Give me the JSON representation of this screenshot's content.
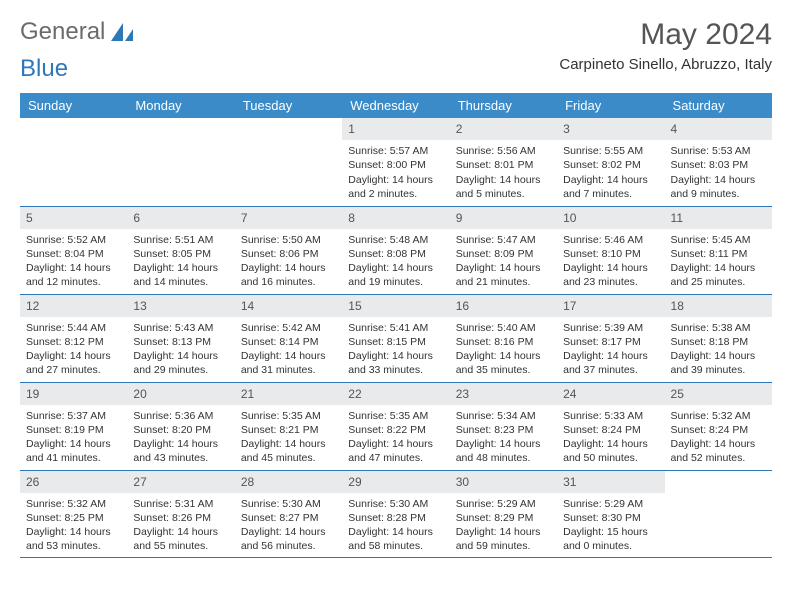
{
  "logo": {
    "word1": "General",
    "word2": "Blue",
    "icon_color": "#2f78b8"
  },
  "title": "May 2024",
  "location": "Carpineto Sinello, Abruzzo, Italy",
  "colors": {
    "header_bg": "#3b8bc9",
    "header_fg": "#ffffff",
    "daynum_bg": "#e9eaeb",
    "rule": "#2f78b8"
  },
  "day_headers": [
    "Sunday",
    "Monday",
    "Tuesday",
    "Wednesday",
    "Thursday",
    "Friday",
    "Saturday"
  ],
  "weeks": [
    [
      null,
      null,
      null,
      {
        "n": "1",
        "sr": "5:57 AM",
        "ss": "8:00 PM",
        "dl": "14 hours and 2 minutes."
      },
      {
        "n": "2",
        "sr": "5:56 AM",
        "ss": "8:01 PM",
        "dl": "14 hours and 5 minutes."
      },
      {
        "n": "3",
        "sr": "5:55 AM",
        "ss": "8:02 PM",
        "dl": "14 hours and 7 minutes."
      },
      {
        "n": "4",
        "sr": "5:53 AM",
        "ss": "8:03 PM",
        "dl": "14 hours and 9 minutes."
      }
    ],
    [
      {
        "n": "5",
        "sr": "5:52 AM",
        "ss": "8:04 PM",
        "dl": "14 hours and 12 minutes."
      },
      {
        "n": "6",
        "sr": "5:51 AM",
        "ss": "8:05 PM",
        "dl": "14 hours and 14 minutes."
      },
      {
        "n": "7",
        "sr": "5:50 AM",
        "ss": "8:06 PM",
        "dl": "14 hours and 16 minutes."
      },
      {
        "n": "8",
        "sr": "5:48 AM",
        "ss": "8:08 PM",
        "dl": "14 hours and 19 minutes."
      },
      {
        "n": "9",
        "sr": "5:47 AM",
        "ss": "8:09 PM",
        "dl": "14 hours and 21 minutes."
      },
      {
        "n": "10",
        "sr": "5:46 AM",
        "ss": "8:10 PM",
        "dl": "14 hours and 23 minutes."
      },
      {
        "n": "11",
        "sr": "5:45 AM",
        "ss": "8:11 PM",
        "dl": "14 hours and 25 minutes."
      }
    ],
    [
      {
        "n": "12",
        "sr": "5:44 AM",
        "ss": "8:12 PM",
        "dl": "14 hours and 27 minutes."
      },
      {
        "n": "13",
        "sr": "5:43 AM",
        "ss": "8:13 PM",
        "dl": "14 hours and 29 minutes."
      },
      {
        "n": "14",
        "sr": "5:42 AM",
        "ss": "8:14 PM",
        "dl": "14 hours and 31 minutes."
      },
      {
        "n": "15",
        "sr": "5:41 AM",
        "ss": "8:15 PM",
        "dl": "14 hours and 33 minutes."
      },
      {
        "n": "16",
        "sr": "5:40 AM",
        "ss": "8:16 PM",
        "dl": "14 hours and 35 minutes."
      },
      {
        "n": "17",
        "sr": "5:39 AM",
        "ss": "8:17 PM",
        "dl": "14 hours and 37 minutes."
      },
      {
        "n": "18",
        "sr": "5:38 AM",
        "ss": "8:18 PM",
        "dl": "14 hours and 39 minutes."
      }
    ],
    [
      {
        "n": "19",
        "sr": "5:37 AM",
        "ss": "8:19 PM",
        "dl": "14 hours and 41 minutes."
      },
      {
        "n": "20",
        "sr": "5:36 AM",
        "ss": "8:20 PM",
        "dl": "14 hours and 43 minutes."
      },
      {
        "n": "21",
        "sr": "5:35 AM",
        "ss": "8:21 PM",
        "dl": "14 hours and 45 minutes."
      },
      {
        "n": "22",
        "sr": "5:35 AM",
        "ss": "8:22 PM",
        "dl": "14 hours and 47 minutes."
      },
      {
        "n": "23",
        "sr": "5:34 AM",
        "ss": "8:23 PM",
        "dl": "14 hours and 48 minutes."
      },
      {
        "n": "24",
        "sr": "5:33 AM",
        "ss": "8:24 PM",
        "dl": "14 hours and 50 minutes."
      },
      {
        "n": "25",
        "sr": "5:32 AM",
        "ss": "8:24 PM",
        "dl": "14 hours and 52 minutes."
      }
    ],
    [
      {
        "n": "26",
        "sr": "5:32 AM",
        "ss": "8:25 PM",
        "dl": "14 hours and 53 minutes."
      },
      {
        "n": "27",
        "sr": "5:31 AM",
        "ss": "8:26 PM",
        "dl": "14 hours and 55 minutes."
      },
      {
        "n": "28",
        "sr": "5:30 AM",
        "ss": "8:27 PM",
        "dl": "14 hours and 56 minutes."
      },
      {
        "n": "29",
        "sr": "5:30 AM",
        "ss": "8:28 PM",
        "dl": "14 hours and 58 minutes."
      },
      {
        "n": "30",
        "sr": "5:29 AM",
        "ss": "8:29 PM",
        "dl": "14 hours and 59 minutes."
      },
      {
        "n": "31",
        "sr": "5:29 AM",
        "ss": "8:30 PM",
        "dl": "15 hours and 0 minutes."
      },
      null
    ]
  ],
  "labels": {
    "sunrise": "Sunrise:",
    "sunset": "Sunset:",
    "daylight": "Daylight:"
  }
}
